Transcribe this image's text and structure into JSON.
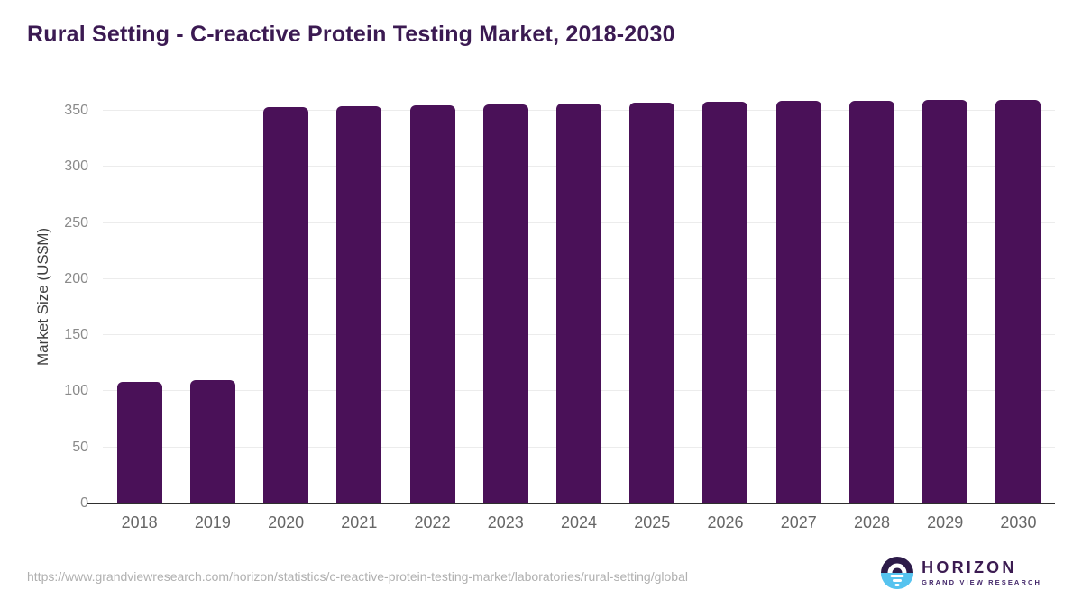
{
  "page": {
    "title": "Rural Setting - C-reactive Protein Testing Market, 2018-2030"
  },
  "chart_data": {
    "type": "bar",
    "title": "Rural Setting - C-reactive Protein Testing Market, 2018-2030",
    "categories": [
      "2018",
      "2019",
      "2020",
      "2021",
      "2022",
      "2023",
      "2024",
      "2025",
      "2026",
      "2027",
      "2028",
      "2029",
      "2030"
    ],
    "values": [
      108,
      110,
      353,
      354,
      355,
      355.5,
      356.5,
      357.5,
      358,
      358.5,
      359,
      359.5,
      360
    ],
    "xlabel": "",
    "ylabel": "Market Size (US$M)",
    "ylim": [
      0,
      368
    ],
    "yticks": [
      0,
      50,
      100,
      150,
      200,
      250,
      300,
      350
    ],
    "grid": true,
    "legend": false,
    "bar_color": "#4a1158"
  },
  "footer": {
    "source_url": "https://www.grandviewresearch.com/horizon/statistics/c-reactive-protein-testing-market/laboratories/rural-setting/global",
    "logo": {
      "name": "HORIZON",
      "tagline": "GRAND VIEW RESEARCH"
    }
  },
  "colors": {
    "title": "#3b1a52",
    "bar": "#4a1158",
    "axis_line": "#2f2f2f",
    "gridline": "#ececec",
    "y_tick_label": "#8a8a8a",
    "x_tick_label": "#666666",
    "source_url": "#b0b0b0",
    "logo_purple": "#2d1b49",
    "logo_blue": "#56c3ef"
  }
}
